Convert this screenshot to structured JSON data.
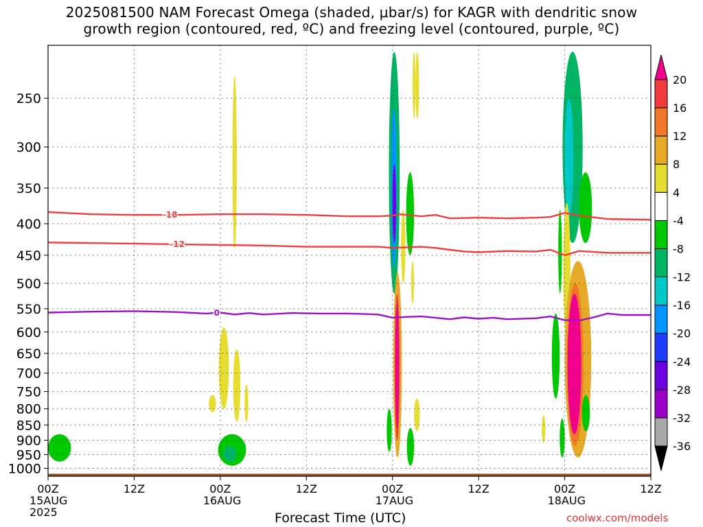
{
  "title": {
    "line1": "2025081500 NAM Forecast Omega (shaded, μbar/s) for KAGR with dendritic snow",
    "line2": "growth region (contoured, red, ºC) and freezing level (contoured, purple, ºC)"
  },
  "footer": {
    "xlabel": "Forecast Time (UTC)",
    "credit": "coolwx.com/models"
  },
  "chart_data": {
    "type": "heatmap",
    "x_ticks": [
      {
        "hour": 0,
        "label": "00Z",
        "sub": "15AUG",
        "sub2": "2025"
      },
      {
        "hour": 12,
        "label": "12Z",
        "sub": "",
        "sub2": ""
      },
      {
        "hour": 24,
        "label": "00Z",
        "sub": "16AUG",
        "sub2": ""
      },
      {
        "hour": 36,
        "label": "12Z",
        "sub": "",
        "sub2": ""
      },
      {
        "hour": 48,
        "label": "00Z",
        "sub": "17AUG",
        "sub2": ""
      },
      {
        "hour": 60,
        "label": "12Z",
        "sub": "",
        "sub2": ""
      },
      {
        "hour": 72,
        "label": "00Z",
        "sub": "18AUG",
        "sub2": ""
      },
      {
        "hour": 84,
        "label": "12Z",
        "sub": "",
        "sub2": ""
      }
    ],
    "x_range_hours": [
      0,
      84
    ],
    "y_ticks": [
      250,
      300,
      350,
      400,
      450,
      500,
      550,
      600,
      650,
      700,
      750,
      800,
      850,
      900,
      950,
      1000
    ],
    "y_range_hpa": [
      205,
      1030
    ],
    "y_scale": "log",
    "grid": true,
    "colorbar": {
      "levels": [
        -36,
        -32,
        -28,
        -24,
        -20,
        -16,
        -12,
        -8,
        -4,
        4,
        8,
        12,
        16,
        20
      ],
      "labels": [
        "-36",
        "-32",
        "-28",
        "-24",
        "-20",
        "-16",
        "-12",
        "-8",
        "-4",
        "4",
        "8",
        "12",
        "16",
        "20"
      ],
      "colors": [
        "#000000",
        "#a8a8a8",
        "#9a00c8",
        "#6e00e0",
        "#1e3cff",
        "#0096ff",
        "#00c8c8",
        "#00b464",
        "#00c800",
        "#ffffff",
        "#e6dc32",
        "#e6aa28",
        "#f07828",
        "#f03c3c",
        "#f0008c"
      ]
    },
    "omega_cells": [
      {
        "t0": 47.5,
        "t1": 49.0,
        "p0": 210,
        "p1": 520,
        "value": -12
      },
      {
        "t0": 47.8,
        "t1": 48.6,
        "p0": 260,
        "p1": 470,
        "value": -20
      },
      {
        "t0": 48.0,
        "t1": 48.5,
        "p0": 320,
        "p1": 430,
        "value": -28
      },
      {
        "t0": 48.1,
        "t1": 49.3,
        "p0": 480,
        "p1": 960,
        "value": 8
      },
      {
        "t0": 48.3,
        "t1": 49.0,
        "p0": 520,
        "p1": 900,
        "value": 16
      },
      {
        "t0": 48.4,
        "t1": 48.9,
        "p0": 540,
        "p1": 860,
        "value": 20
      },
      {
        "t0": 47.2,
        "t1": 47.9,
        "p0": 800,
        "p1": 940,
        "value": -6
      },
      {
        "t0": 49.9,
        "t1": 51.0,
        "p0": 330,
        "p1": 450,
        "value": -6
      },
      {
        "t0": 50.0,
        "t1": 51.0,
        "p0": 860,
        "p1": 990,
        "value": -6
      },
      {
        "t0": 49.2,
        "t1": 49.8,
        "p0": 380,
        "p1": 500,
        "value": 6
      },
      {
        "t0": 50.6,
        "t1": 51.0,
        "p0": 460,
        "p1": 540,
        "value": 6
      },
      {
        "t0": 51.0,
        "t1": 51.8,
        "p0": 770,
        "p1": 870,
        "value": 6
      },
      {
        "t0": 51.2,
        "t1": 51.7,
        "p0": 210,
        "p1": 270,
        "value": 6
      },
      {
        "t0": 71.7,
        "t1": 74.5,
        "p0": 210,
        "p1": 430,
        "value": -12
      },
      {
        "t0": 72.0,
        "t1": 73.2,
        "p0": 250,
        "p1": 390,
        "value": -16
      },
      {
        "t0": 74.0,
        "t1": 75.8,
        "p0": 330,
        "p1": 430,
        "value": -6
      },
      {
        "t0": 70.2,
        "t1": 71.3,
        "p0": 560,
        "p1": 770,
        "value": -6
      },
      {
        "t0": 71.8,
        "t1": 72.8,
        "p0": 370,
        "p1": 620,
        "value": 6
      },
      {
        "t0": 72.0,
        "t1": 75.7,
        "p0": 460,
        "p1": 960,
        "value": 10
      },
      {
        "t0": 72.3,
        "t1": 74.6,
        "p0": 500,
        "p1": 920,
        "value": 14
      },
      {
        "t0": 72.4,
        "t1": 74.3,
        "p0": 520,
        "p1": 880,
        "value": 20
      },
      {
        "t0": 71.3,
        "t1": 72.0,
        "p0": 830,
        "p1": 960,
        "value": -6
      },
      {
        "t0": 74.4,
        "t1": 75.5,
        "p0": 760,
        "p1": 870,
        "value": -6
      },
      {
        "t0": 71.1,
        "t1": 71.6,
        "p0": 380,
        "p1": 520,
        "value": -6
      },
      {
        "t0": 25.7,
        "t1": 26.3,
        "p0": 230,
        "p1": 440,
        "value": 6
      },
      {
        "t0": 23.8,
        "t1": 25.2,
        "p0": 590,
        "p1": 800,
        "value": 6
      },
      {
        "t0": 25.8,
        "t1": 26.8,
        "p0": 640,
        "p1": 840,
        "value": 6
      },
      {
        "t0": 22.4,
        "t1": 23.4,
        "p0": 760,
        "p1": 810,
        "value": 6
      },
      {
        "t0": 27.4,
        "t1": 27.9,
        "p0": 730,
        "p1": 840,
        "value": 6
      },
      {
        "t0": 23.7,
        "t1": 27.6,
        "p0": 880,
        "p1": 990,
        "value": -6
      },
      {
        "t0": 24.4,
        "t1": 26.3,
        "p0": 920,
        "p1": 975,
        "value": -12
      },
      {
        "t0": 0.0,
        "t1": 3.2,
        "p0": 880,
        "p1": 975,
        "value": -6
      },
      {
        "t0": 50.8,
        "t1": 51.2,
        "p0": 210,
        "p1": 270,
        "value": 6
      },
      {
        "t0": 68.8,
        "t1": 69.3,
        "p0": 820,
        "p1": 910,
        "value": 6
      }
    ],
    "dgz_contours": [
      {
        "label": "-18",
        "label_hour": 17.0,
        "points": [
          [
            0,
            383
          ],
          [
            6,
            386
          ],
          [
            12,
            387
          ],
          [
            18,
            387
          ],
          [
            24,
            386
          ],
          [
            30,
            386
          ],
          [
            36,
            387
          ],
          [
            42,
            389
          ],
          [
            46,
            389
          ],
          [
            48,
            388
          ],
          [
            49,
            386
          ],
          [
            52,
            389
          ],
          [
            54,
            387
          ],
          [
            56,
            392
          ],
          [
            60,
            391
          ],
          [
            64,
            392
          ],
          [
            68,
            391
          ],
          [
            70,
            390
          ],
          [
            72,
            384
          ],
          [
            74,
            388
          ],
          [
            78,
            393
          ],
          [
            84,
            394
          ]
        ]
      },
      {
        "label": "-12",
        "label_hour": 18.0,
        "points": [
          [
            0,
            429
          ],
          [
            6,
            430
          ],
          [
            12,
            431
          ],
          [
            18,
            432
          ],
          [
            24,
            433
          ],
          [
            30,
            434
          ],
          [
            36,
            436
          ],
          [
            42,
            436
          ],
          [
            46,
            436
          ],
          [
            48,
            438
          ],
          [
            50,
            437
          ],
          [
            52,
            436
          ],
          [
            54,
            438
          ],
          [
            56,
            441
          ],
          [
            58,
            444
          ],
          [
            60,
            445
          ],
          [
            64,
            443
          ],
          [
            68,
            444
          ],
          [
            70,
            441
          ],
          [
            72,
            450
          ],
          [
            74,
            443
          ],
          [
            78,
            446
          ],
          [
            84,
            446
          ]
        ]
      }
    ],
    "freezing_contours": [
      {
        "label": "0",
        "label_hour": 23.5,
        "points": [
          [
            0,
            558
          ],
          [
            6,
            556
          ],
          [
            12,
            555
          ],
          [
            18,
            557
          ],
          [
            22,
            560
          ],
          [
            24,
            558
          ],
          [
            26,
            562
          ],
          [
            28,
            559
          ],
          [
            30,
            562
          ],
          [
            34,
            559
          ],
          [
            38,
            560
          ],
          [
            42,
            560
          ],
          [
            46,
            562
          ],
          [
            48,
            569
          ],
          [
            50,
            567
          ],
          [
            52,
            566
          ],
          [
            54,
            569
          ],
          [
            56,
            572
          ],
          [
            58,
            568
          ],
          [
            60,
            571
          ],
          [
            62,
            569
          ],
          [
            64,
            572
          ],
          [
            68,
            570
          ],
          [
            70,
            566
          ],
          [
            72,
            574
          ],
          [
            74,
            575
          ],
          [
            76,
            568
          ],
          [
            78,
            560
          ],
          [
            80,
            563
          ],
          [
            84,
            563
          ]
        ]
      }
    ],
    "ground_p": 1010
  }
}
